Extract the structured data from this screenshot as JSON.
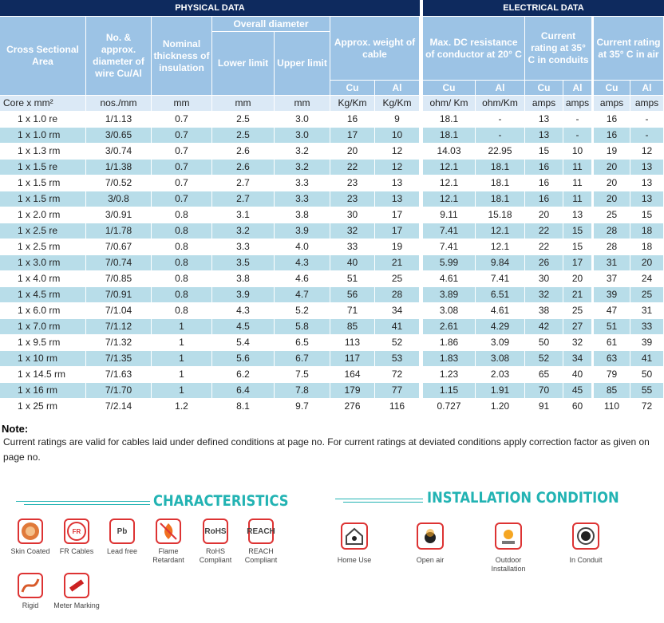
{
  "header": {
    "physical": "PHYSICAL DATA",
    "electrical": "ELECTRICAL DATA"
  },
  "headers": {
    "area": "Cross Sectional Area",
    "wire": "No. & approx. diameter of wire Cu/Al",
    "insulation": "Nominal thickness of insulation",
    "overall_diameter": {
      "label": "Overall diameter",
      "lower": "Lower limit",
      "upper": "Upper limit"
    },
    "weight": {
      "label": "Approx. weight of cable",
      "cu": "Cu",
      "al": "Al"
    },
    "resistance": {
      "label": "Max. DC resistance of conductor at 20° C",
      "cu": "Cu",
      "al": "Al"
    },
    "conduit": {
      "label": "Current rating at 35° C in conduits",
      "cu": "Cu",
      "al": "Al"
    },
    "air": {
      "label": "Current rating at 35° C in air",
      "cu": "Cu",
      "al": "Al"
    }
  },
  "units": [
    "Core  x  mm²",
    "nos./mm",
    "mm",
    "mm",
    "mm",
    "Kg/Km",
    "Kg/Km",
    "ohm/ Km",
    "ohm/Km",
    "amps",
    "amps",
    "amps",
    "amps"
  ],
  "table": {
    "rows": [
      [
        "1  x  1.0 re",
        "1/1.13",
        "0.7",
        "2.5",
        "3.0",
        "16",
        "9",
        "18.1",
        "-",
        "13",
        "-",
        "16",
        "-"
      ],
      [
        "1  x  1.0 rm",
        "3/0.65",
        "0.7",
        "2.5",
        "3.0",
        "17",
        "10",
        "18.1",
        "-",
        "13",
        "-",
        "16",
        "-"
      ],
      [
        "1  x  1.3 rm",
        "3/0.74",
        "0.7",
        "2.6",
        "3.2",
        "20",
        "12",
        "14.03",
        "22.95",
        "15",
        "10",
        "19",
        "12"
      ],
      [
        "1  x  1.5 re",
        "1/1.38",
        "0.7",
        "2.6",
        "3.2",
        "22",
        "12",
        "12.1",
        "18.1",
        "16",
        "11",
        "20",
        "13"
      ],
      [
        "1  x  1.5 rm",
        "7/0.52",
        "0.7",
        "2.7",
        "3.3",
        "23",
        "13",
        "12.1",
        "18.1",
        "16",
        "11",
        "20",
        "13"
      ],
      [
        "1  x  1.5 rm",
        "3/0.8",
        "0.7",
        "2.7",
        "3.3",
        "23",
        "13",
        "12.1",
        "18.1",
        "16",
        "11",
        "20",
        "13"
      ],
      [
        "1  x  2.0 rm",
        "3/0.91",
        "0.8",
        "3.1",
        "3.8",
        "30",
        "17",
        "9.11",
        "15.18",
        "20",
        "13",
        "25",
        "15"
      ],
      [
        "1  x  2.5 re",
        "1/1.78",
        "0.8",
        "3.2",
        "3.9",
        "32",
        "17",
        "7.41",
        "12.1",
        "22",
        "15",
        "28",
        "18"
      ],
      [
        "1  x  2.5 rm",
        "7/0.67",
        "0.8",
        "3.3",
        "4.0",
        "33",
        "19",
        "7.41",
        "12.1",
        "22",
        "15",
        "28",
        "18"
      ],
      [
        "1  x  3.0 rm",
        "7/0.74",
        "0.8",
        "3.5",
        "4.3",
        "40",
        "21",
        "5.99",
        "9.84",
        "26",
        "17",
        "31",
        "20"
      ],
      [
        "1  x  4.0 rm",
        "7/0.85",
        "0.8",
        "3.8",
        "4.6",
        "51",
        "25",
        "4.61",
        "7.41",
        "30",
        "20",
        "37",
        "24"
      ],
      [
        "1  x  4.5 rm",
        "7/0.91",
        "0.8",
        "3.9",
        "4.7",
        "56",
        "28",
        "3.89",
        "6.51",
        "32",
        "21",
        "39",
        "25"
      ],
      [
        "1  x  6.0 rm",
        "7/1.04",
        "0.8",
        "4.3",
        "5.2",
        "71",
        "34",
        "3.08",
        "4.61",
        "38",
        "25",
        "47",
        "31"
      ],
      [
        "1  x  7.0 rm",
        "7/1.12",
        "1",
        "4.5",
        "5.8",
        "85",
        "41",
        "2.61",
        "4.29",
        "42",
        "27",
        "51",
        "33"
      ],
      [
        "1  x  9.5 rm",
        "7/1.32",
        "1",
        "5.4",
        "6.5",
        "113",
        "52",
        "1.86",
        "3.09",
        "50",
        "32",
        "61",
        "39"
      ],
      [
        "1  x  10 rm",
        "7/1.35",
        "1",
        "5.6",
        "6.7",
        "117",
        "53",
        "1.83",
        "3.08",
        "52",
        "34",
        "63",
        "41"
      ],
      [
        "1  x  14.5 rm",
        "7/1.63",
        "1",
        "6.2",
        "7.5",
        "164",
        "72",
        "1.23",
        "2.03",
        "65",
        "40",
        "79",
        "50"
      ],
      [
        "1  x  16 rm",
        "7/1.70",
        "1",
        "6.4",
        "7.8",
        "179",
        "77",
        "1.15",
        "1.91",
        "70",
        "45",
        "85",
        "55"
      ],
      [
        "1  x  25 rm",
        "7/2.14",
        "1.2",
        "8.1",
        "9.7",
        "276",
        "116",
        "0.727",
        "1.20",
        "91",
        "60",
        "110",
        "72"
      ]
    ]
  },
  "note": {
    "title": "Note:",
    "text": "Current ratings are valid for cables laid under defined conditions at page no.   For current ratings at deviated conditions apply correction factor as given on page no."
  },
  "characteristics": {
    "title": "CHARACTERISTICS",
    "items": [
      {
        "label": "Skin Coated"
      },
      {
        "label": "FR Cables"
      },
      {
        "label": "Lead free",
        "icon": "Pb"
      },
      {
        "label": "Flame Retardant"
      },
      {
        "label": "RoHS Compliant",
        "icon": "RoHS"
      },
      {
        "label": "REACH Compliant",
        "icon": "REACH"
      },
      {
        "label": "Rigid"
      },
      {
        "label": "Meter Marking"
      }
    ]
  },
  "installation": {
    "title": "INSTALLATION CONDITION",
    "items": [
      {
        "label": "Home Use"
      },
      {
        "label": "Open air"
      },
      {
        "label": "Outdoor Installation"
      },
      {
        "label": "In Conduit"
      }
    ]
  }
}
